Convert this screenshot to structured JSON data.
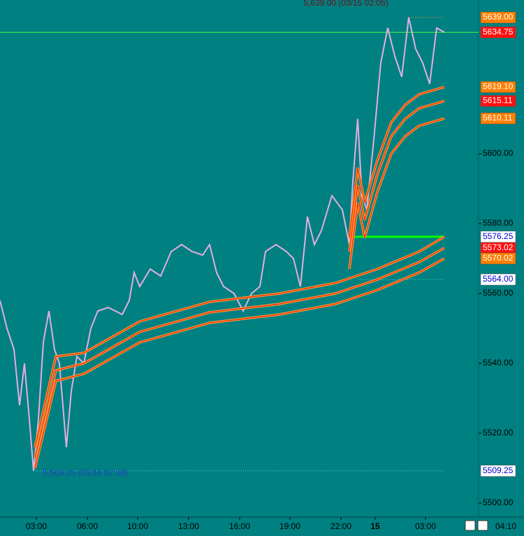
{
  "chart_data": {
    "type": "line",
    "xlim": [
      0,
      685
    ],
    "ylim": [
      5496,
      5644
    ],
    "xticks": [
      {
        "value": 52,
        "label": "03:00"
      },
      {
        "value": 125,
        "label": "06:00"
      },
      {
        "value": 197,
        "label": "10:00"
      },
      {
        "value": 270,
        "label": "13:00"
      },
      {
        "value": 343,
        "label": "16:00"
      },
      {
        "value": 415,
        "label": "19:00"
      },
      {
        "value": 488,
        "label": "22:00"
      },
      {
        "value": 537,
        "label": "15"
      },
      {
        "value": 609,
        "label": "03:00"
      }
    ],
    "current_time": "04:10",
    "yticks": [
      {
        "value": 5500,
        "label": "5500.00"
      },
      {
        "value": 5520,
        "label": "5520.00"
      },
      {
        "value": 5540,
        "label": "5540.00"
      },
      {
        "value": 5560,
        "label": "5560.00"
      },
      {
        "value": 5580,
        "label": "5580.00"
      },
      {
        "value": 5600,
        "label": "5600.00"
      }
    ],
    "series": [
      {
        "color": "#e2aee2",
        "x": [
          0,
          10,
          20,
          28,
          35,
          42,
          48,
          55,
          62,
          70,
          78,
          85,
          95,
          102,
          110,
          120,
          130,
          140,
          155,
          175,
          185,
          192,
          200,
          215,
          230,
          245,
          260,
          275,
          290,
          300,
          310,
          320,
          335,
          348,
          360,
          372,
          380,
          395,
          410,
          420,
          430,
          440,
          450,
          460,
          475,
          490,
          500,
          505,
          512,
          518,
          525,
          535,
          545,
          555,
          565,
          575,
          585,
          595,
          605,
          615,
          625,
          636
        ],
        "values": [
          5558,
          5550,
          5544,
          5528,
          5540,
          5524,
          5509.25,
          5524,
          5546,
          5555,
          5544,
          5540,
          5516,
          5532,
          5542,
          5540,
          5550,
          5555,
          5556,
          5554,
          5558,
          5566,
          5562,
          5567,
          5565,
          5572,
          5574,
          5572,
          5571,
          5574,
          5566,
          5562,
          5560,
          5555,
          5560,
          5562,
          5572,
          5574,
          5572,
          5570,
          5562,
          5582,
          5574,
          5578,
          5588,
          5584,
          5574,
          5592,
          5610,
          5588,
          5584,
          5604,
          5626,
          5636,
          5628,
          5622,
          5639,
          5630,
          5626,
          5620,
          5636,
          5634.75
        ]
      },
      {
        "color": "#ff2a00",
        "x": [
          50,
          80,
          120,
          200,
          300,
          400,
          480,
          540,
          600,
          636
        ],
        "values": [
          5516,
          5542,
          5543,
          5552,
          5557.6,
          5560,
          5563,
          5567,
          5572,
          5576.25
        ]
      },
      {
        "color": "#ff2a00",
        "x": [
          50,
          80,
          120,
          200,
          300,
          400,
          480,
          540,
          600,
          636
        ],
        "values": [
          5513,
          5538,
          5540,
          5549,
          5554.6,
          5557,
          5560,
          5564,
          5569,
          5573.02
        ]
      },
      {
        "color": "#ff2a00",
        "x": [
          50,
          80,
          120,
          200,
          300,
          400,
          480,
          540,
          600,
          636
        ],
        "values": [
          5510,
          5535,
          5537,
          5546,
          5551.6,
          5554,
          5557,
          5561,
          5566,
          5570.02
        ]
      },
      {
        "color": "#ff2a00",
        "x": [
          500,
          512,
          522,
          540,
          560,
          580,
          600,
          636
        ],
        "values": [
          5576,
          5596,
          5586,
          5598,
          5609,
          5614,
          5617,
          5619.1
        ]
      },
      {
        "color": "#ff2a00",
        "x": [
          500,
          512,
          522,
          540,
          560,
          580,
          600,
          636
        ],
        "values": [
          5572,
          5591,
          5581,
          5594,
          5605,
          5610,
          5613,
          5615.11
        ]
      },
      {
        "color": "#ff2a00",
        "x": [
          500,
          512,
          522,
          540,
          560,
          580,
          600,
          636
        ],
        "values": [
          5567,
          5586,
          5576,
          5589,
          5600,
          5605,
          5608,
          5610.11
        ]
      }
    ],
    "levels": [
      {
        "value": 5509.25,
        "x": [
          48,
          636
        ],
        "color": "#40e0e0"
      },
      {
        "value": 5564,
        "x": [
          513,
          636
        ],
        "color": "#40e0e0"
      },
      {
        "value": 5639,
        "x": [
          585,
          636
        ],
        "color": "#ff9020"
      },
      {
        "value": 5576.25,
        "x": [
          497,
          636
        ],
        "color": "#00ff00"
      },
      {
        "value": 5634.75,
        "x": [
          0,
          685
        ],
        "color": "#40ff40"
      }
    ],
    "price_tags": {
      "values": [
        5639,
        5634.75,
        5619.1,
        5615.11,
        5610.11,
        5576.25,
        5573.02,
        5570.02,
        5564,
        5509.25
      ],
      "value_labels": [
        "5639.00",
        "5634.75",
        "5619.10",
        "5615.11",
        "5610.11",
        "5576.25",
        "5573.02",
        "5570.02",
        "5564.00",
        "5509.25"
      ],
      "backgrounds": [
        "#ff7f00",
        "#ff1010",
        "#ff7f00",
        "#ff1010",
        "#ff7f00",
        "#ffffff",
        "#ff1010",
        "#ff7f00",
        "#ffffff",
        "#ffffff"
      ],
      "text_colors": [
        "#ffffff",
        "#ffffff",
        "#ffffff",
        "#ffffff",
        "#ffffff",
        "#0000cc",
        "#ffffff",
        "#ffffff",
        "#0000cc",
        "#0000cc"
      ]
    },
    "annotations": [
      {
        "text": "5,639.00 (03/15 02:05)",
        "x": 495,
        "value": 5643
      },
      {
        "text": "5,509.25 (03/14 02:38)",
        "x": 122,
        "value": 5508.5
      }
    ]
  }
}
